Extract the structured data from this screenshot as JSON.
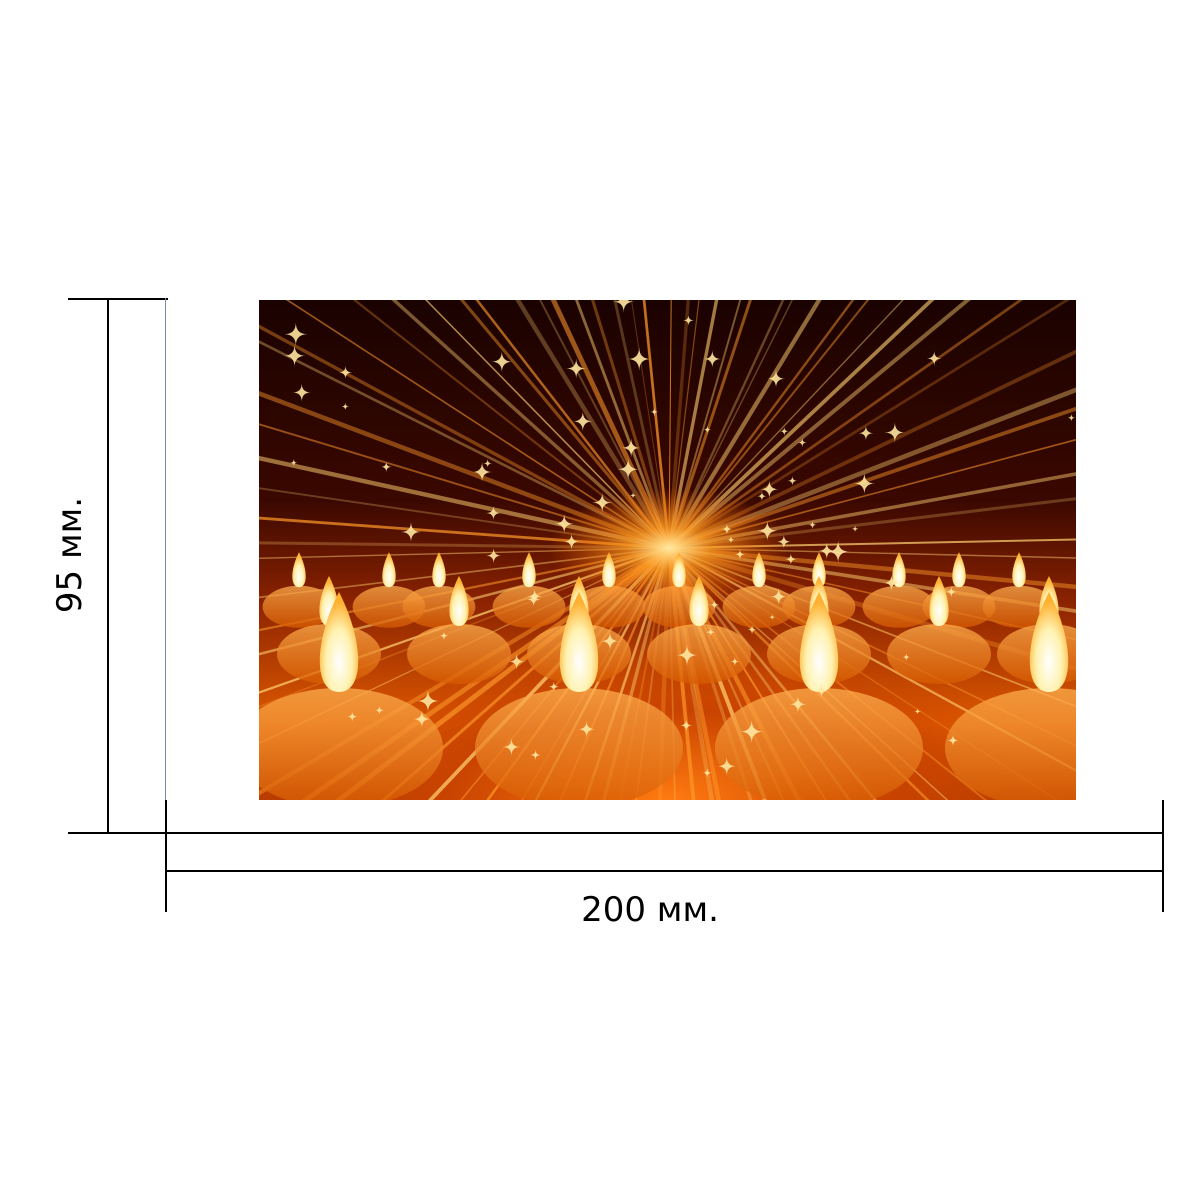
{
  "dimensions": {
    "height_label": "95 мм.",
    "width_label": "200 мм."
  },
  "photo": {
    "subject": "candles-with-light-burst",
    "colors": {
      "flame": "#fff6c8",
      "glow": "#ff8a1a",
      "dark": "#1a0200"
    }
  }
}
